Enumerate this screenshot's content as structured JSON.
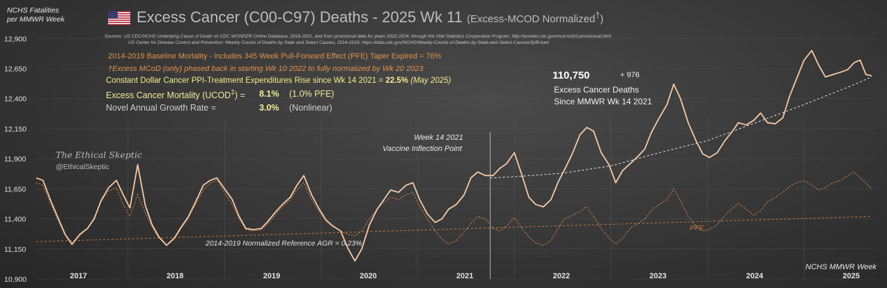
{
  "header": {
    "ylabel_line1": "NCHS Fatalities",
    "ylabel_line2": "per MMWR Week",
    "title_main": "Excess Cancer (C00-C97) Deaths - 2025 Wk 11 ",
    "title_sub": "(Excess-MCOD  Normalized",
    "title_dagger": "†",
    "title_close": ")",
    "source_line1": "Sources:  US CDC/NCHS Underlying  Cause of Death on CDC WONDER Online Database, 2018-2021, and from provisional data for years 2022-2024, through the Vital Statistics Cooperative Program; http://wonder.cdc.gov/mcd-icd10-provisional.html",
    "source_line2": "US Center for Disease Control and Prevention: Weekly  Counts of Deaths by State and Select Causes, 2014-2018; https://data.cdc.gov/NCHS/Weekly-Counts-of-Deaths-by-State-and-Select-Causes/3yf8-kanr"
  },
  "notes": {
    "baseline": "2014-2019 Baseline Mortality - includes 345 Week Pull-Forward Effect (PFE) Taper Expired =  76%",
    "mcod": "†Excess MCoD (only) phased back in starting  Wk 10 2022 to fully normalized  by Wk 20 2023",
    "ppi_prefix": "Constant Dollar Cancer PPI-Treatment Expenditures Rise since Wk 14 2021  = ",
    "ppi_value": "22.5%",
    "ppi_suffix": " (May 2025)",
    "ucod_label": "Excess Cancer Mortality (UCOD",
    "ucod_dagger": "‡",
    "ucod_eq": ") =",
    "ucod_value": "8.1%",
    "ucod_pfe": "(1.0% PFE)",
    "growth_label": "Novel Annual  Growth  Rate  =",
    "growth_value": "3.0%",
    "growth_note": "(Nonlinear)"
  },
  "callout": {
    "total": "110,750",
    "weekly": "+ 976",
    "line1": "Excess Cancer Deaths",
    "line2": "Since MMWR  Wk 14 2021"
  },
  "annotations": {
    "inflection_line1": "Week 14 2021",
    "inflection_line2": "Vaccine Inflection Point",
    "reference": "2014-2019 Normalized Reference  AGR = 0.23%",
    "pfe": "PFE",
    "xaxis_note": "NCHS MMWR Week"
  },
  "brand": {
    "logo": "The Ethical Skeptic",
    "handle": "@EthicalSkeptic"
  },
  "colors": {
    "actual": "#f7c9a6",
    "baseline": "#d9894a",
    "trend": "#e8e8e8",
    "yellow": "#f3ee8a",
    "marker": "#e02020"
  },
  "chart_data": {
    "type": "line",
    "xlabel": "NCHS MMWR Week",
    "ylabel": "NCHS Fatalities per MMWR Week",
    "xlim": [
      2016.55,
      2025.25
    ],
    "ylim": [
      10900,
      13000
    ],
    "y_ticks": [
      10900,
      11150,
      11400,
      11650,
      11900,
      12150,
      12400,
      12650,
      12900
    ],
    "year_labels": [
      "2017",
      "2018",
      "2019",
      "2020",
      "2021",
      "2022",
      "2023",
      "2024",
      "2025"
    ],
    "grid": true,
    "series": [
      {
        "x": [
          2016.55,
          2016.62,
          2016.7,
          2016.78,
          2016.85,
          2016.92,
          2017.0,
          2017.08,
          2017.15,
          2017.22,
          2017.3,
          2017.38,
          2017.45,
          2017.52,
          2017.6,
          2017.68,
          2017.75,
          2017.82,
          2017.9,
          2017.98,
          2018.05,
          2018.12,
          2018.2,
          2018.28,
          2018.35,
          2018.42,
          2018.5,
          2018.58,
          2018.65,
          2018.72,
          2018.8,
          2018.88,
          2018.95,
          2019.02,
          2019.1,
          2019.18,
          2019.25,
          2019.32,
          2019.4,
          2019.48,
          2019.55,
          2019.62,
          2019.7,
          2019.78,
          2019.85,
          2019.92,
          2020.0,
          2020.08,
          2020.15,
          2020.22,
          2020.3,
          2020.38,
          2020.45,
          2020.52,
          2020.6,
          2020.68,
          2020.75,
          2020.82,
          2020.9,
          2020.98,
          2021.05,
          2021.12,
          2021.2,
          2021.28,
          2021.35,
          2021.42,
          2021.5,
          2021.58,
          2021.65,
          2021.72,
          2021.8,
          2021.88,
          2021.95,
          2022.02,
          2022.1,
          2022.18,
          2022.25,
          2022.32,
          2022.4,
          2022.48,
          2022.55,
          2022.62,
          2022.7,
          2022.78,
          2022.85,
          2022.92,
          2023.0,
          2023.08,
          2023.15,
          2023.22,
          2023.3,
          2023.38,
          2023.45,
          2023.52,
          2023.6,
          2023.68,
          2023.75,
          2023.82,
          2023.9,
          2023.98,
          2024.05,
          2024.12,
          2024.2,
          2024.28,
          2024.35,
          2024.42,
          2024.5,
          2024.58,
          2024.65,
          2024.72,
          2024.8,
          2024.88,
          2024.95,
          2025.02,
          2025.08,
          2025.14,
          2025.2
        ],
        "values": [
          11740,
          11720,
          11550,
          11400,
          11270,
          11190,
          11270,
          11320,
          11400,
          11550,
          11660,
          11720,
          11600,
          11490,
          11850,
          11510,
          11350,
          11250,
          11180,
          11240,
          11330,
          11410,
          11540,
          11680,
          11720,
          11740,
          11650,
          11560,
          11420,
          11320,
          11310,
          11320,
          11380,
          11450,
          11520,
          11580,
          11680,
          11760,
          11600,
          11480,
          11390,
          11340,
          11300,
          11150,
          11050,
          11150,
          11350,
          11480,
          11560,
          11640,
          11620,
          11680,
          11700,
          11560,
          11440,
          11370,
          11400,
          11480,
          11520,
          11600,
          11740,
          11790,
          11760,
          11760,
          11820,
          11860,
          11950,
          11760,
          11580,
          11520,
          11500,
          11560,
          11700,
          11810,
          11940,
          12100,
          12160,
          12130,
          11950,
          11850,
          11700,
          11800,
          11860,
          11920,
          11980,
          12120,
          12240,
          12350,
          12520,
          12400,
          12200,
          12050,
          11940,
          11910,
          11950,
          12050,
          12120,
          12200,
          12180,
          12220,
          12280,
          12200,
          12190,
          12240,
          12420,
          12560,
          12720,
          12800,
          12680,
          12580,
          12600,
          12620,
          12640,
          12700,
          12720,
          12600,
          12590
        ],
        "name": ""
      },
      {
        "x": [
          2016.55,
          2016.62,
          2016.7,
          2016.78,
          2016.85,
          2016.92,
          2017.0,
          2017.08,
          2017.15,
          2017.22,
          2017.3,
          2017.38,
          2017.45,
          2017.52,
          2017.6,
          2017.68,
          2017.75,
          2017.82,
          2017.9,
          2017.98,
          2018.05,
          2018.12,
          2018.2,
          2018.28,
          2018.35,
          2018.42,
          2018.5,
          2018.58,
          2018.65,
          2018.72,
          2018.8,
          2018.88,
          2018.95,
          2019.02,
          2019.1,
          2019.18,
          2019.25,
          2019.32,
          2019.4,
          2019.48,
          2019.55,
          2019.62,
          2019.7,
          2019.78,
          2019.85,
          2019.92,
          2020.0,
          2020.08,
          2020.15,
          2020.22,
          2020.3,
          2020.38,
          2020.45,
          2020.52,
          2020.6,
          2020.68,
          2020.75,
          2020.82,
          2020.9,
          2020.98,
          2021.05,
          2021.12,
          2021.2,
          2021.28,
          2021.35,
          2021.42,
          2021.5,
          2021.58,
          2021.65,
          2021.72,
          2021.8,
          2021.88,
          2021.95,
          2022.02,
          2022.1,
          2022.18,
          2022.25,
          2022.32,
          2022.4,
          2022.48,
          2022.55,
          2022.62,
          2022.7,
          2022.78,
          2022.85,
          2022.92,
          2023.0,
          2023.08,
          2023.15,
          2023.22,
          2023.3,
          2023.38,
          2023.45,
          2023.52,
          2023.6,
          2023.68,
          2023.75,
          2023.82,
          2023.9,
          2023.98,
          2024.05,
          2024.12,
          2024.2,
          2024.28,
          2024.35,
          2024.42,
          2024.5,
          2024.58,
          2024.65,
          2024.72,
          2024.8,
          2024.88,
          2024.95,
          2025.02,
          2025.08,
          2025.14,
          2025.2
        ],
        "values": [
          11700,
          11680,
          11520,
          11380,
          11260,
          11180,
          11260,
          11320,
          11410,
          11540,
          11630,
          11660,
          11520,
          11420,
          11600,
          11450,
          11330,
          11240,
          11180,
          11230,
          11320,
          11400,
          11520,
          11640,
          11700,
          11720,
          11620,
          11520,
          11400,
          11310,
          11300,
          11310,
          11360,
          11430,
          11500,
          11560,
          11640,
          11700,
          11560,
          11460,
          11380,
          11340,
          11300,
          11270,
          11260,
          11300,
          11400,
          11480,
          11540,
          11580,
          11560,
          11600,
          11620,
          11500,
          11400,
          11300,
          11230,
          11190,
          11220,
          11290,
          11360,
          11420,
          11400,
          11320,
          11300,
          11340,
          11410,
          11320,
          11250,
          11200,
          11180,
          11220,
          11320,
          11400,
          11430,
          11460,
          11500,
          11420,
          11320,
          11240,
          11190,
          11240,
          11320,
          11360,
          11400,
          11470,
          11520,
          11560,
          11650,
          11550,
          11420,
          11340,
          11300,
          11310,
          11350,
          11430,
          11480,
          11530,
          11480,
          11430,
          11470,
          11540,
          11580,
          11620,
          11670,
          11700,
          11720,
          11680,
          11640,
          11660,
          11700,
          11720,
          11760,
          11790,
          11740,
          11700,
          11650
        ],
        "name": ""
      }
    ],
    "reference_line": {
      "x": [
        2016.55,
        2025.2
      ],
      "values": [
        11210,
        11420
      ]
    },
    "trend_curve": {
      "x": [
        2021.25,
        2021.5,
        2022.0,
        2022.5,
        2023.0,
        2023.5,
        2024.0,
        2024.5,
        2025.0,
        2025.2
      ],
      "values": [
        11740,
        11750,
        11780,
        11840,
        11950,
        12050,
        12200,
        12350,
        12510,
        12580
      ]
    },
    "inflection_x": 2021.25
  }
}
